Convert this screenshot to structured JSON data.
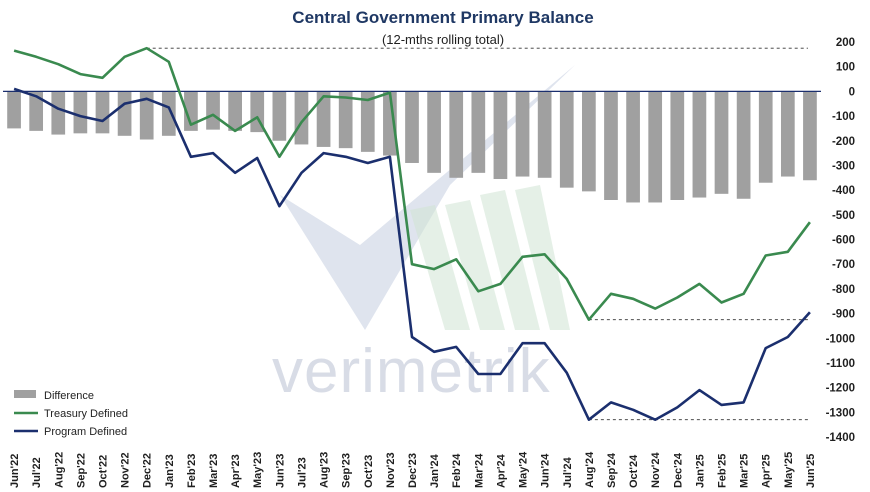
{
  "chart_data": {
    "type": "bar+line",
    "title": "Central Government  Primary Balance",
    "subtitle": "(12-mths rolling total)",
    "xlabel": "",
    "ylabel": "",
    "ylim": [
      -1400,
      200
    ],
    "yticks": [
      200,
      100,
      0,
      -100,
      -200,
      -300,
      -400,
      -500,
      -600,
      -700,
      -800,
      -900,
      -1000,
      -1100,
      -1200,
      -1300,
      -1400
    ],
    "y_axis_position": "right",
    "grid": false,
    "legend_position": "bottom-left",
    "categories": [
      "Jun'22",
      "Jul'22",
      "Aug'22",
      "Sep'22",
      "Oct'22",
      "Nov'22",
      "Dec'22",
      "Jan'23",
      "Feb'23",
      "Mar'23",
      "Apr'23",
      "May'23",
      "Jun'23",
      "Jul'23",
      "Aug'23",
      "Sep'23",
      "Oct'23",
      "Nov'23",
      "Dec'23",
      "Jan'24",
      "Feb'24",
      "Mar'24",
      "Apr'24",
      "May'24",
      "Jun'24",
      "Jul'24",
      "Aug'24",
      "Sep'24",
      "Oct'24",
      "Nov'24",
      "Dec'24",
      "Jan'25",
      "Feb'25",
      "Mar'25",
      "Apr'25",
      "May'25",
      "Jun'25"
    ],
    "series": [
      {
        "name": "Difference",
        "kind": "bar",
        "color": "#a0a0a0",
        "values": [
          -150,
          -160,
          -175,
          -170,
          -170,
          -180,
          -195,
          -180,
          -160,
          -155,
          -160,
          -165,
          -200,
          -215,
          -225,
          -230,
          -245,
          -260,
          -290,
          -330,
          -350,
          -330,
          -355,
          -345,
          -350,
          -390,
          -405,
          -440,
          -450,
          -450,
          -440,
          -430,
          -415,
          -435,
          -370,
          -345,
          -360
        ]
      },
      {
        "name": "Treasury Defined",
        "kind": "line",
        "color": "#3a8a4f",
        "values": [
          165,
          140,
          110,
          70,
          55,
          140,
          175,
          120,
          -135,
          -95,
          -160,
          -105,
          -265,
          -125,
          -20,
          -25,
          -35,
          -5,
          -700,
          -720,
          -680,
          -810,
          -780,
          -670,
          -660,
          -760,
          -925,
          -820,
          -840,
          -880,
          -835,
          -780,
          -855,
          -820,
          -665,
          -650,
          -530
        ]
      },
      {
        "name": "Program Defined",
        "kind": "line",
        "color": "#1b2f6e",
        "values": [
          10,
          -20,
          -70,
          -100,
          -120,
          -50,
          -30,
          -65,
          -265,
          -250,
          -330,
          -270,
          -465,
          -330,
          -250,
          -265,
          -290,
          -265,
          -995,
          -1055,
          -1035,
          -1145,
          -1145,
          -1020,
          -1020,
          -1140,
          -1330,
          -1260,
          -1290,
          -1330,
          -1280,
          -1210,
          -1270,
          -1260,
          -1040,
          -995,
          -895
        ]
      }
    ],
    "reference_lines": [
      {
        "y": 175,
        "style": "dashed"
      },
      {
        "y": 0,
        "style": "solid"
      },
      {
        "y": -925,
        "style": "dashed"
      },
      {
        "y": -1330,
        "style": "dashed"
      }
    ],
    "watermark_text": "verimetrik"
  }
}
